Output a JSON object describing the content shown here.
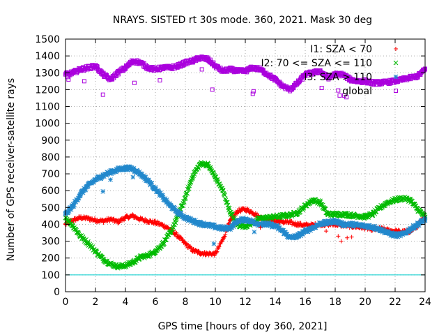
{
  "chart_data": {
    "type": "scatter",
    "title": "NRAYS. SISTED rt 30s mode. 360, 2021. Mask 30 deg",
    "xlabel": "GPS time [hours of doy 360, 2021]",
    "ylabel": "Number of GPS receiver-satellite rays",
    "xlim": [
      0,
      24
    ],
    "ylim": [
      0,
      1500
    ],
    "xticks": [
      0,
      2,
      4,
      6,
      8,
      10,
      12,
      14,
      16,
      18,
      20,
      22,
      24
    ],
    "yticks": [
      0,
      100,
      200,
      300,
      400,
      500,
      600,
      700,
      800,
      900,
      1000,
      1100,
      1200,
      1300,
      1400,
      1500
    ],
    "grid": true,
    "legend_position": "top-right",
    "threshold_line": {
      "y": 100,
      "color": "#00cccc"
    },
    "series": [
      {
        "name": "I1: SZA < 70",
        "legend_label": "I1: SZA < 70",
        "color": "#ff0000",
        "marker": "plus",
        "x": [
          0,
          0.5,
          1,
          1.5,
          2,
          2.5,
          3,
          3.5,
          4,
          4.5,
          5,
          5.5,
          6,
          6.5,
          7,
          7.5,
          8,
          8.5,
          9,
          9.5,
          10,
          10.5,
          11,
          11.5,
          12,
          12.5,
          13,
          13.5,
          14,
          14.5,
          15,
          15.5,
          16,
          16.5,
          17,
          17.5,
          18,
          18.5,
          19,
          19.5,
          20,
          20.5,
          21,
          21.5,
          22,
          22.5,
          23,
          23.5,
          24
        ],
        "y": [
          400,
          425,
          440,
          435,
          425,
          420,
          430,
          415,
          440,
          450,
          430,
          420,
          410,
          395,
          370,
          330,
          285,
          245,
          230,
          225,
          225,
          310,
          420,
          480,
          490,
          470,
          440,
          430,
          420,
          415,
          410,
          400,
          395,
          395,
          400,
          400,
          400,
          395,
          390,
          385,
          380,
          370,
          375,
          365,
          360,
          355,
          360,
          390,
          450
        ]
      },
      {
        "name": "I2: 70 <= SZA <= 110",
        "legend_label": "I2: 70 <= SZA <= 110",
        "color": "#00bb00",
        "marker": "cross",
        "x": [
          0,
          0.5,
          1,
          1.5,
          2,
          2.5,
          3,
          3.5,
          4,
          4.5,
          5,
          5.5,
          6,
          6.5,
          7,
          7.5,
          8,
          8.5,
          9,
          9.5,
          10,
          10.5,
          11,
          11.5,
          12,
          12.5,
          13,
          13.5,
          14,
          14.5,
          15,
          15.5,
          16,
          16.5,
          17,
          17.5,
          18,
          18.5,
          19,
          19.5,
          20,
          20.5,
          21,
          21.5,
          22,
          22.5,
          23,
          23.5,
          24
        ],
        "y": [
          440,
          390,
          330,
          290,
          240,
          195,
          165,
          150,
          155,
          175,
          205,
          215,
          240,
          285,
          350,
          450,
          560,
          690,
          760,
          755,
          680,
          600,
          470,
          395,
          390,
          410,
          435,
          440,
          445,
          450,
          455,
          470,
          510,
          545,
          530,
          460,
          460,
          460,
          455,
          450,
          445,
          460,
          500,
          530,
          545,
          555,
          545,
          490,
          445
        ]
      },
      {
        "name": "I3: SZA > 110",
        "legend_label": "I3: SZA > 110",
        "color": "#2288cc",
        "marker": "star",
        "x": [
          0,
          0.5,
          1,
          1.5,
          2,
          2.5,
          3,
          3.5,
          4,
          4.5,
          5,
          5.5,
          6,
          6.5,
          7,
          7.5,
          8,
          8.5,
          9,
          9.5,
          10,
          10.5,
          11,
          11.5,
          12,
          12.5,
          13,
          13.5,
          14,
          14.5,
          15,
          15.5,
          16,
          16.5,
          17,
          17.5,
          18,
          18.5,
          19,
          19.5,
          20,
          20.5,
          21,
          21.5,
          22,
          22.5,
          23,
          23.5,
          24
        ],
        "y": [
          460,
          510,
          580,
          630,
          665,
          690,
          710,
          725,
          735,
          730,
          700,
          660,
          610,
          560,
          510,
          470,
          440,
          420,
          405,
          395,
          385,
          375,
          380,
          420,
          430,
          415,
          400,
          400,
          390,
          360,
          320,
          330,
          360,
          380,
          405,
          410,
          420,
          400,
          400,
          395,
          390,
          385,
          370,
          350,
          335,
          340,
          370,
          400,
          430
        ]
      },
      {
        "name": "global",
        "legend_label": "global",
        "color": "#aa00dd",
        "marker": "square",
        "x": [
          0,
          0.5,
          1,
          1.5,
          2,
          2.5,
          3,
          3.5,
          4,
          4.5,
          5,
          5.5,
          6,
          6.5,
          7,
          7.5,
          8,
          8.5,
          9,
          9.5,
          10,
          10.5,
          11,
          11.5,
          12,
          12.5,
          13,
          13.5,
          14,
          14.5,
          15,
          15.5,
          16,
          16.5,
          17,
          17.5,
          18,
          18.5,
          19,
          19.5,
          20,
          20.5,
          21,
          21.5,
          22,
          22.5,
          23,
          23.5,
          24
        ],
        "y": [
          1290,
          1300,
          1320,
          1330,
          1340,
          1290,
          1260,
          1300,
          1330,
          1370,
          1360,
          1330,
          1320,
          1330,
          1330,
          1340,
          1360,
          1370,
          1390,
          1380,
          1340,
          1310,
          1320,
          1310,
          1310,
          1330,
          1320,
          1290,
          1260,
          1220,
          1200,
          1240,
          1290,
          1300,
          1310,
          1270,
          1290,
          1290,
          1260,
          1250,
          1250,
          1240,
          1240,
          1245,
          1250,
          1260,
          1270,
          1280,
          1320
        ]
      }
    ],
    "outliers": [
      {
        "series": "global",
        "x": [
          0.15,
          0.2,
          1.25,
          2.5,
          4.6,
          6.3,
          9.1,
          9.8,
          12.5,
          12.55,
          17.1,
          18.2,
          18.3,
          18.6,
          18.75
        ],
        "y": [
          1275,
          1260,
          1250,
          1170,
          1240,
          1255,
          1320,
          1200,
          1175,
          1190,
          1210,
          1195,
          1165,
          1165,
          1155
        ]
      },
      {
        "series": "I1: SZA < 70",
        "x": [
          13.0,
          17.4,
          18.2,
          18.4,
          18.8,
          19.1
        ],
        "y": [
          380,
          360,
          330,
          300,
          320,
          325
        ]
      },
      {
        "series": "I3: SZA > 110",
        "x": [
          2.5,
          3.0,
          4.5,
          9.9,
          12.6
        ],
        "y": [
          595,
          665,
          680,
          285,
          355
        ]
      }
    ]
  }
}
